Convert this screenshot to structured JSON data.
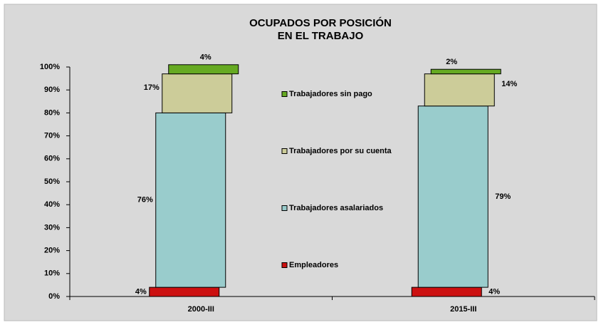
{
  "chart_data": {
    "type": "bar",
    "stacked": true,
    "title": [
      "OCUPADOS POR POSICIÓN",
      "EN EL TRABAJO"
    ],
    "categories": [
      "2000-III",
      "2015-III"
    ],
    "series": [
      {
        "name": "Empleadores",
        "color": "#cc1111",
        "values": [
          4,
          4
        ],
        "value_labels": [
          "4%",
          "4%"
        ]
      },
      {
        "name": "Trabajadores asalariados",
        "color": "#99cccc",
        "values": [
          76,
          79
        ],
        "value_labels": [
          "76%",
          "79%"
        ]
      },
      {
        "name": "Trabajadores por su cuenta",
        "color": "#cccc99",
        "values": [
          17,
          14
        ],
        "value_labels": [
          "17%",
          "14%"
        ]
      },
      {
        "name": "Trabajadores sin pago",
        "color": "#66aa22",
        "values": [
          4,
          2
        ],
        "value_labels": [
          "4%",
          "2%"
        ]
      }
    ],
    "ylim": [
      0,
      100
    ],
    "yticks": [
      {
        "value": 0,
        "label": "0%"
      },
      {
        "value": 10,
        "label": "10%"
      },
      {
        "value": 20,
        "label": "20%"
      },
      {
        "value": 30,
        "label": "30%"
      },
      {
        "value": 40,
        "label": "40%"
      },
      {
        "value": 50,
        "label": "50%"
      },
      {
        "value": 60,
        "label": "60%"
      },
      {
        "value": 70,
        "label": "70%"
      },
      {
        "value": 80,
        "label": "80%"
      },
      {
        "value": 90,
        "label": "90%"
      },
      {
        "value": 100,
        "label": "100%"
      }
    ],
    "grid": false
  }
}
